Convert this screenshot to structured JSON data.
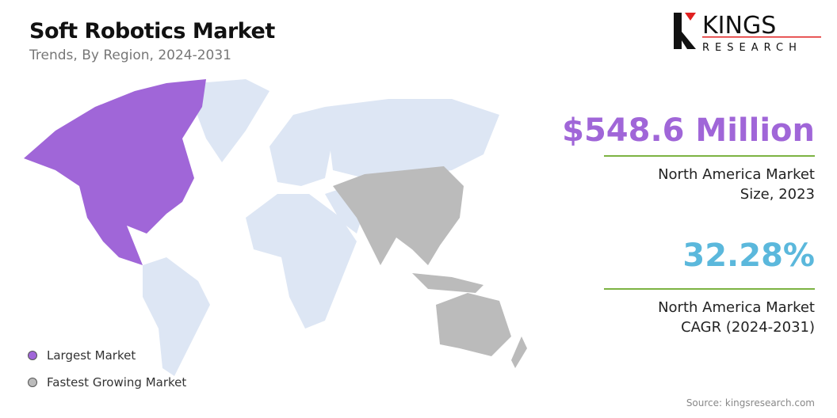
{
  "header": {
    "title": "Soft Robotics Market",
    "subtitle": "Trends, By Region, 2024-2031"
  },
  "logo": {
    "text_top": "KINGS",
    "text_bottom": "RESEARCH"
  },
  "stats": [
    {
      "value": "$548.6 Million",
      "label_line1": "North America Market",
      "label_line2": "Size, 2023",
      "color": "#a066d8"
    },
    {
      "value": "32.28%",
      "label_line1": "North America Market",
      "label_line2": "CAGR (2024-2031)",
      "color": "#5bb8dc"
    }
  ],
  "legend": [
    {
      "label": "Largest Market",
      "color": "#a066d8"
    },
    {
      "label": "Fastest Growing Market",
      "color": "#bbbbbb"
    }
  ],
  "map": {
    "regions": [
      {
        "name": "North America",
        "status": "Largest Market",
        "color": "#a066d8"
      },
      {
        "name": "Asia Pacific",
        "status": "Fastest Growing Market",
        "color": "#bbbbbb"
      },
      {
        "name": "Other",
        "color": "#dde6f4"
      }
    ]
  },
  "source": "Source: kingsresearch.com"
}
